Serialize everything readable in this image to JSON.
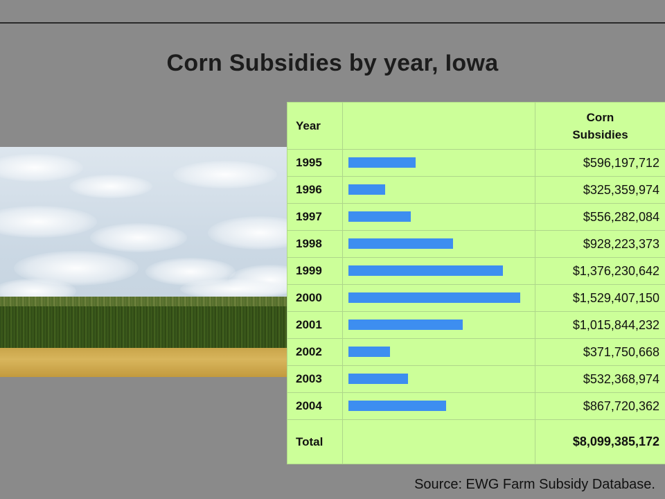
{
  "title": "Corn Subsidies by year, Iowa",
  "source": "Source: EWG Farm Subsidy Database.",
  "colors": {
    "background": "#8a8a8a",
    "table_background": "#ccff99",
    "bar": "#3d8ef0"
  },
  "table": {
    "col_year": "Year",
    "col_value": "Corn Subsidies",
    "col_value_line1": "Corn",
    "col_value_line2": "Subsidies",
    "total_label": "Total",
    "total_value": "$8,099,385,172"
  },
  "chart_data": {
    "type": "bar",
    "orientation": "horizontal",
    "title": "Corn Subsidies by year, Iowa",
    "categories": [
      "1995",
      "1996",
      "1997",
      "1998",
      "1999",
      "2000",
      "2001",
      "2002",
      "2003",
      "2004"
    ],
    "values": [
      596197712,
      325359974,
      556282084,
      928223373,
      1376230642,
      1529407150,
      1015844232,
      371750668,
      532368974,
      867720362
    ],
    "labels": [
      "$596,197,712",
      "$325,359,974",
      "$556,282,084",
      "$928,223,373",
      "$1,376,230,642",
      "$1,529,407,150",
      "$1,015,844,232",
      "$371,750,668",
      "$532,368,974",
      "$867,720,362"
    ],
    "xlim": [
      0,
      1529407150
    ],
    "grid": false
  }
}
